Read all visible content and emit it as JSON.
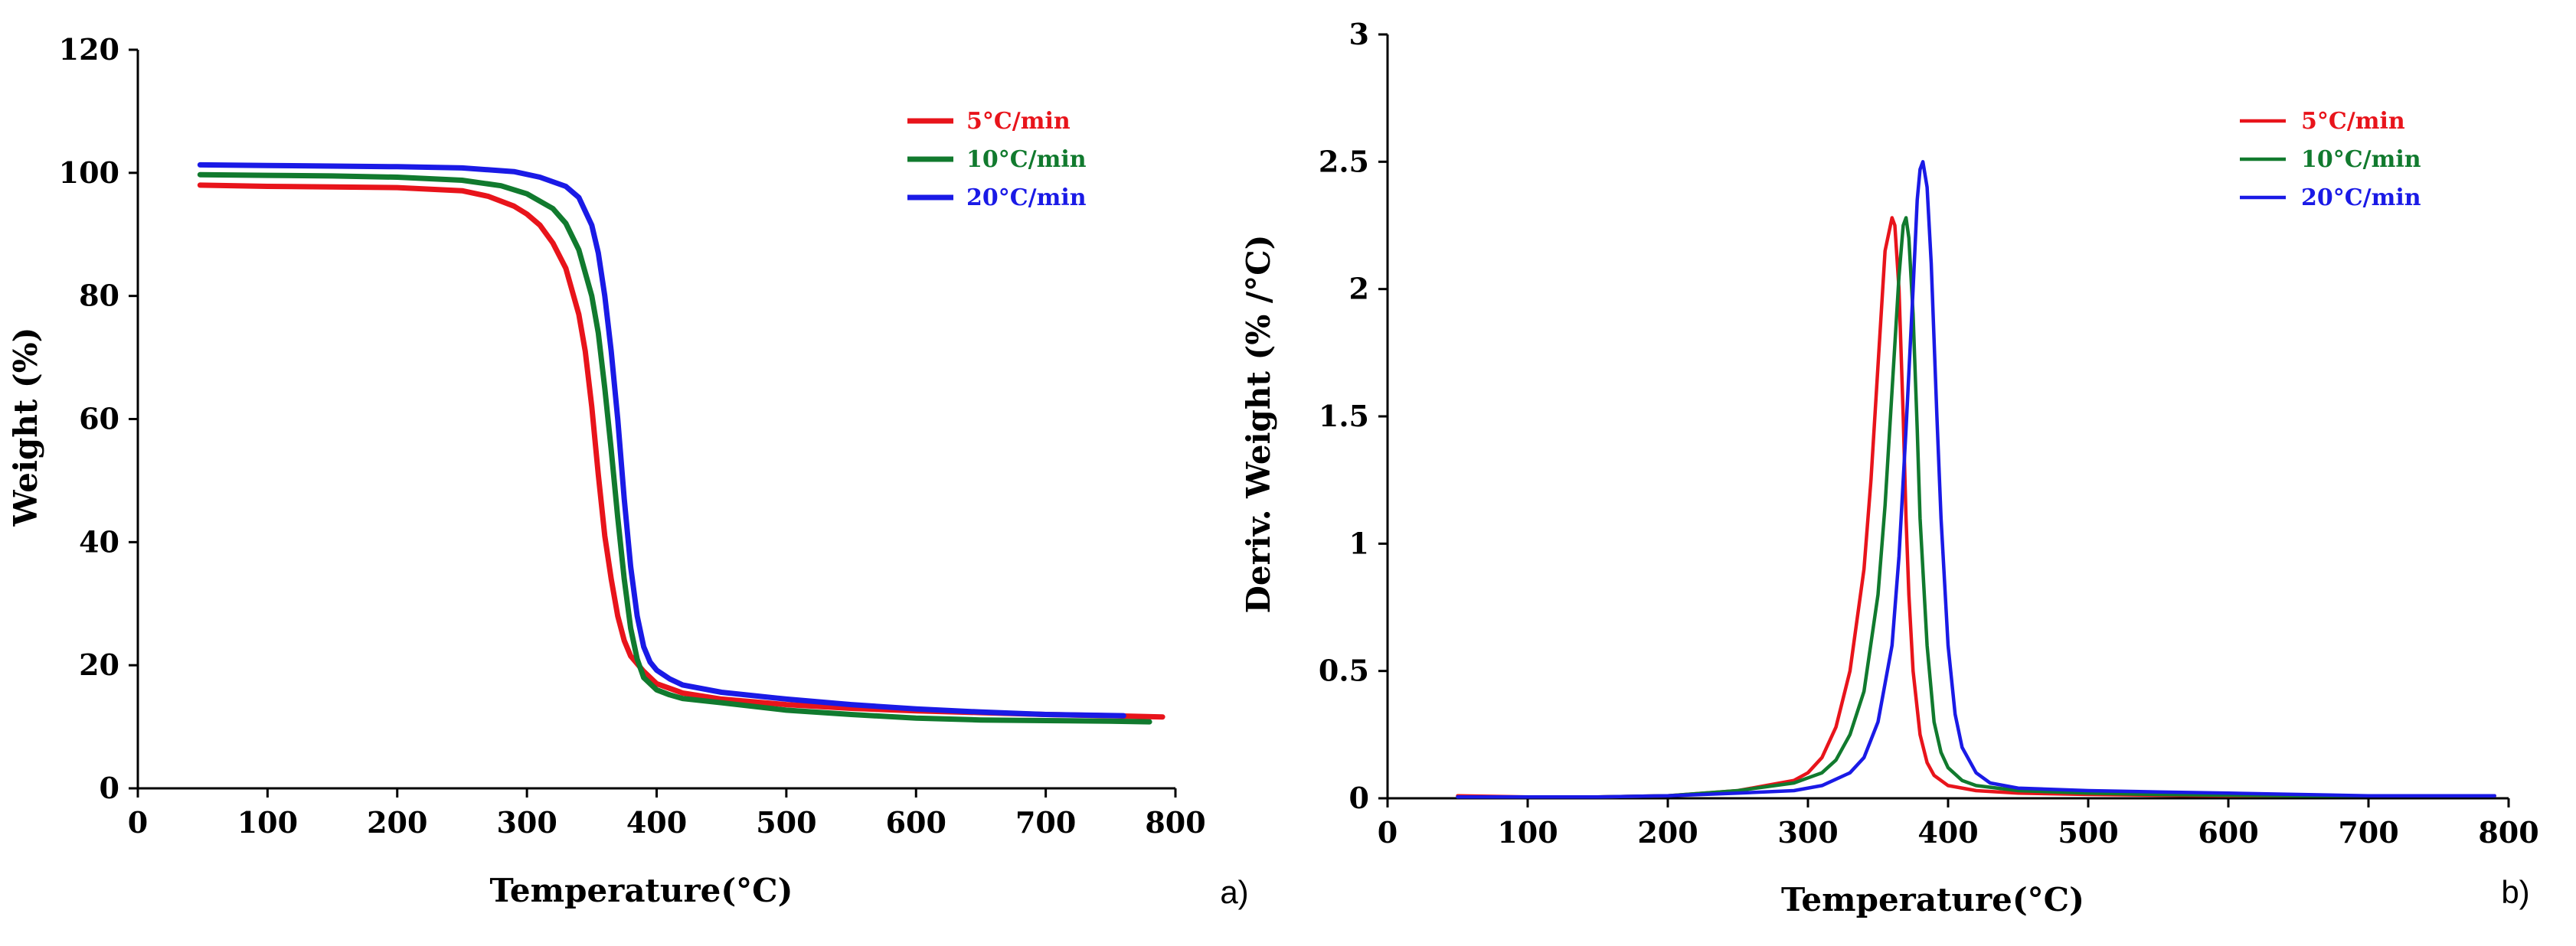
{
  "colors": {
    "red": "#e8141b",
    "green": "#117a2e",
    "blue": "#1a1ae6",
    "axis": "#000000"
  },
  "chart_data": [
    {
      "id": "a",
      "type": "line",
      "panel_label": "a)",
      "xlabel": "Temperature(°C)",
      "ylabel": "Weight (%)",
      "xlim": [
        0,
        800
      ],
      "ylim": [
        0,
        120
      ],
      "xticks": [
        0,
        100,
        200,
        300,
        400,
        500,
        600,
        700,
        800
      ],
      "yticks": [
        0,
        20,
        40,
        60,
        80,
        100,
        120
      ],
      "xtick_labels": [
        "0",
        "100",
        "200",
        "300",
        "400",
        "500",
        "600",
        "700",
        "800"
      ],
      "ytick_labels": [
        "0",
        "20",
        "40",
        "60",
        "80",
        "100",
        "120"
      ],
      "legend_position": "top-right",
      "series": [
        {
          "name": "5°C/min",
          "color": "#e8141b",
          "x": [
            48,
            100,
            150,
            200,
            250,
            270,
            290,
            300,
            310,
            320,
            330,
            340,
            345,
            350,
            355,
            360,
            365,
            370,
            375,
            380,
            390,
            400,
            420,
            450,
            500,
            550,
            600,
            650,
            700,
            750,
            790
          ],
          "y": [
            98,
            97.8,
            97.7,
            97.6,
            97.1,
            96.2,
            94.6,
            93.3,
            91.5,
            88.6,
            84.5,
            77,
            71,
            62,
            51,
            41,
            34,
            28,
            24,
            21.5,
            19,
            17,
            15.5,
            14.5,
            13.6,
            13,
            12.6,
            12.3,
            12,
            11.8,
            11.6
          ]
        },
        {
          "name": "10°C/min",
          "color": "#117a2e",
          "x": [
            48,
            100,
            150,
            200,
            250,
            280,
            300,
            320,
            330,
            340,
            350,
            355,
            360,
            365,
            370,
            375,
            380,
            385,
            390,
            400,
            410,
            420,
            450,
            500,
            550,
            600,
            650,
            700,
            750,
            780
          ],
          "y": [
            99.7,
            99.6,
            99.5,
            99.3,
            98.8,
            97.9,
            96.6,
            94.2,
            91.8,
            87.5,
            80,
            74,
            65,
            55,
            44,
            34,
            26,
            21,
            18,
            16,
            15.2,
            14.6,
            13.9,
            12.7,
            12,
            11.4,
            11.1,
            11,
            10.9,
            10.8
          ]
        },
        {
          "name": "20°C/min",
          "color": "#1a1ae6",
          "x": [
            48,
            100,
            150,
            200,
            250,
            290,
            310,
            330,
            340,
            350,
            355,
            360,
            365,
            370,
            375,
            380,
            385,
            390,
            395,
            400,
            410,
            420,
            450,
            500,
            550,
            600,
            650,
            700,
            760
          ],
          "y": [
            101.3,
            101.2,
            101.1,
            101,
            100.8,
            100.2,
            99.3,
            97.8,
            96,
            91.5,
            87,
            80,
            71,
            60,
            47,
            36,
            28,
            23,
            20.5,
            19.2,
            17.8,
            16.8,
            15.6,
            14.5,
            13.6,
            12.9,
            12.4,
            12,
            11.8
          ]
        }
      ]
    },
    {
      "id": "b",
      "type": "line",
      "panel_label": "b)",
      "xlabel": "Temperature(°C)",
      "ylabel": "Deriv. Weight (% /°C)",
      "xlim": [
        0,
        800
      ],
      "ylim": [
        0,
        3
      ],
      "xticks": [
        0,
        100,
        200,
        300,
        400,
        500,
        600,
        700,
        800
      ],
      "yticks": [
        0,
        0.5,
        1,
        1.5,
        2,
        2.5,
        3
      ],
      "xtick_labels": [
        "0",
        "100",
        "200",
        "300",
        "400",
        "500",
        "600",
        "700",
        "800"
      ],
      "ytick_labels": [
        "0",
        "0.5",
        "1",
        "1.5",
        "2",
        "2.5",
        "3"
      ],
      "legend_position": "top-right",
      "series": [
        {
          "name": "5°C/min",
          "color": "#e8141b",
          "x": [
            50,
            100,
            150,
            200,
            250,
            270,
            290,
            300,
            310,
            320,
            330,
            340,
            345,
            350,
            355,
            360,
            362,
            365,
            368,
            370,
            372,
            375,
            380,
            385,
            390,
            400,
            420,
            450,
            500,
            550,
            600,
            650,
            700,
            750,
            790
          ],
          "y": [
            0.01,
            0.005,
            0.005,
            0.01,
            0.03,
            0.05,
            0.07,
            0.1,
            0.16,
            0.28,
            0.5,
            0.9,
            1.25,
            1.7,
            2.15,
            2.28,
            2.25,
            2.0,
            1.5,
            1.1,
            0.8,
            0.5,
            0.25,
            0.14,
            0.09,
            0.05,
            0.03,
            0.02,
            0.015,
            0.012,
            0.01,
            0.01,
            0.01,
            0.01,
            0.01
          ]
        },
        {
          "name": "10°C/min",
          "color": "#117a2e",
          "x": [
            50,
            100,
            150,
            200,
            250,
            270,
            290,
            310,
            320,
            330,
            340,
            350,
            355,
            360,
            365,
            368,
            370,
            372,
            375,
            378,
            380,
            385,
            390,
            395,
            400,
            410,
            420,
            450,
            500,
            550,
            600,
            650,
            700,
            750,
            780
          ],
          "y": [
            0.005,
            0.005,
            0.005,
            0.01,
            0.03,
            0.045,
            0.06,
            0.1,
            0.15,
            0.25,
            0.42,
            0.8,
            1.15,
            1.6,
            2.05,
            2.25,
            2.28,
            2.2,
            1.9,
            1.45,
            1.1,
            0.6,
            0.3,
            0.18,
            0.12,
            0.07,
            0.05,
            0.03,
            0.02,
            0.015,
            0.012,
            0.01,
            0.01,
            0.01,
            0.01
          ]
        },
        {
          "name": "20°C/min",
          "color": "#1a1ae6",
          "x": [
            50,
            100,
            150,
            200,
            250,
            290,
            310,
            330,
            340,
            350,
            360,
            365,
            370,
            375,
            378,
            380,
            382,
            385,
            388,
            390,
            392,
            395,
            400,
            405,
            410,
            420,
            430,
            450,
            500,
            550,
            600,
            650,
            700,
            750,
            790
          ],
          "y": [
            0.005,
            0.005,
            0.005,
            0.01,
            0.02,
            0.03,
            0.05,
            0.1,
            0.16,
            0.3,
            0.6,
            0.95,
            1.45,
            2.0,
            2.35,
            2.47,
            2.5,
            2.4,
            2.1,
            1.8,
            1.5,
            1.1,
            0.6,
            0.33,
            0.2,
            0.1,
            0.06,
            0.04,
            0.03,
            0.025,
            0.02,
            0.015,
            0.01,
            0.01,
            0.01
          ]
        }
      ]
    }
  ]
}
